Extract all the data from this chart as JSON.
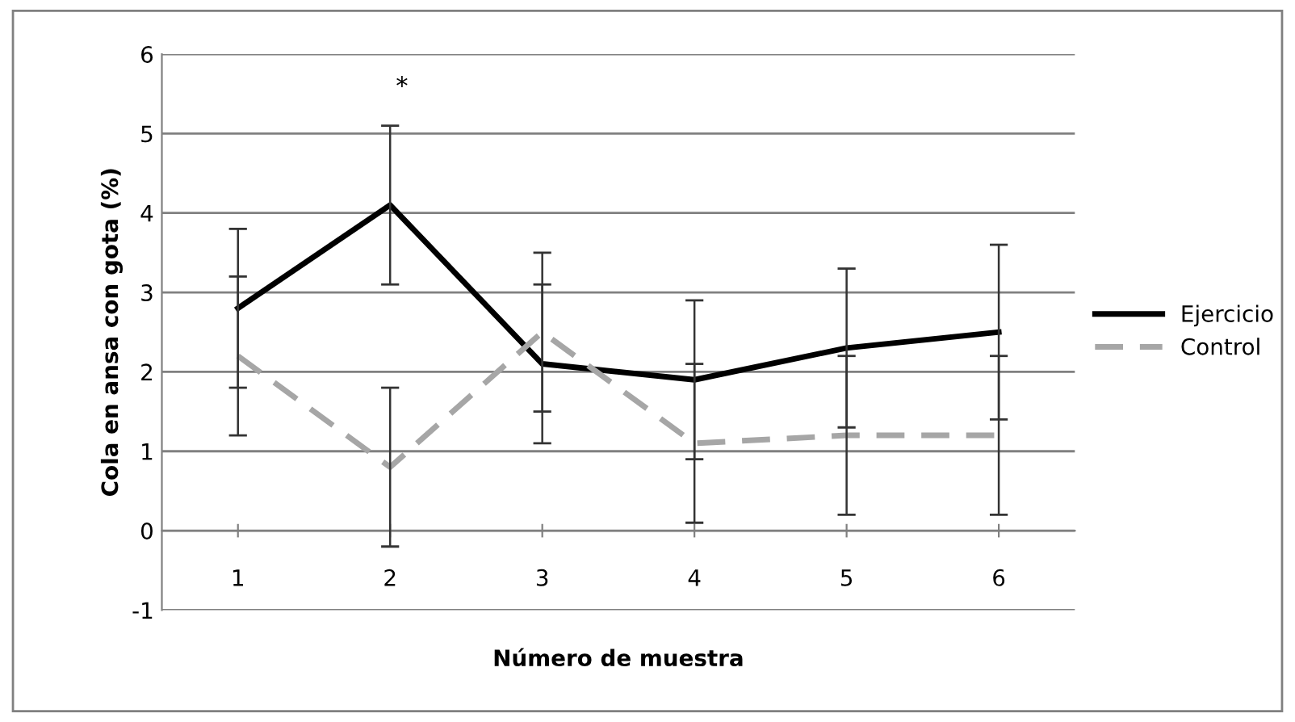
{
  "chart_data": {
    "type": "line",
    "xlabel": "Número de muestra",
    "ylabel": "Cola en ansa con gota (%)",
    "categories": [
      "1",
      "2",
      "3",
      "4",
      "5",
      "6"
    ],
    "series": [
      {
        "name": "Ejercicio",
        "color": "#000000",
        "line_style": "solid",
        "values": [
          2.8,
          4.1,
          2.1,
          1.9,
          2.3,
          2.5
        ],
        "errors": [
          1,
          1,
          1,
          1,
          1,
          1.1
        ]
      },
      {
        "name": "Control",
        "color": "#a6a6a6",
        "line_style": "dashed",
        "values": [
          2.2,
          0.8,
          2.5,
          1.1,
          1.2,
          1.2
        ],
        "errors": [
          1,
          1,
          1,
          1,
          1,
          1
        ]
      }
    ],
    "ylim": [
      -1,
      6
    ],
    "yticks": [
      -1,
      0,
      1,
      2,
      3,
      4,
      5,
      6
    ],
    "grid": "y",
    "legend": "right",
    "marker": "none",
    "annotations": [
      "*"
    ]
  }
}
